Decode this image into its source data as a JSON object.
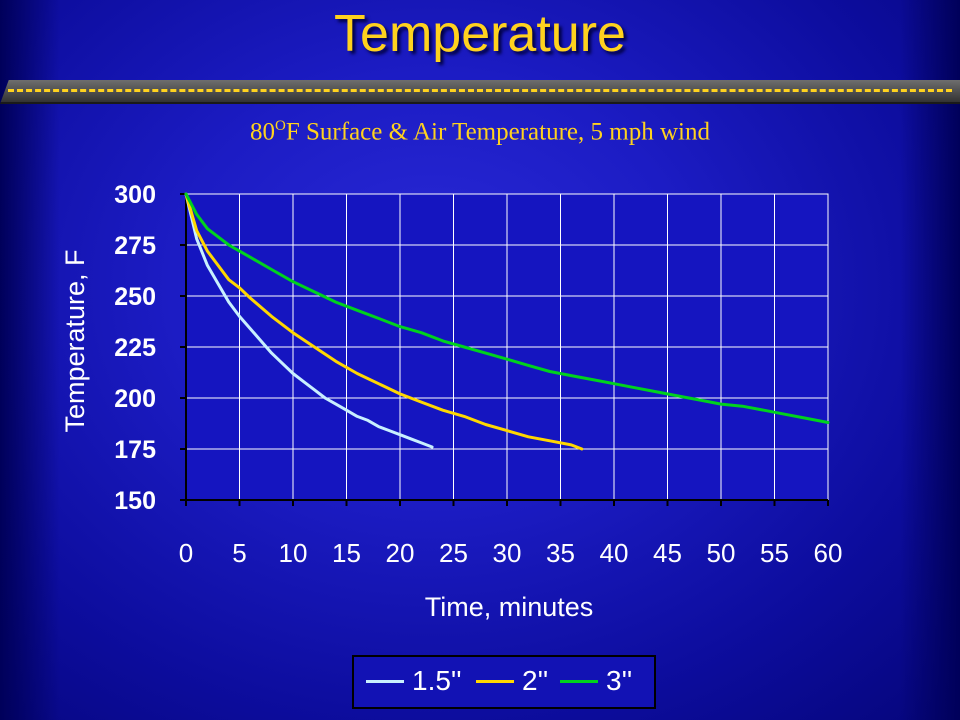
{
  "slide": {
    "title": "Temperature",
    "subtitle_main": "80",
    "subtitle_sup": "O",
    "subtitle_rest": "F Surface & Air Temperature, 5 mph wind"
  },
  "chart_data": {
    "type": "line",
    "xlabel": "Time, minutes",
    "ylabel": "Temperature, F",
    "xlim": [
      0,
      60
    ],
    "ylim": [
      150,
      300
    ],
    "xticks": [
      0,
      5,
      10,
      15,
      20,
      25,
      30,
      35,
      40,
      45,
      50,
      55,
      60
    ],
    "yticks": [
      150,
      175,
      200,
      225,
      250,
      275,
      300
    ],
    "grid": true,
    "legend_position": "bottom",
    "series": [
      {
        "name": "1.5''",
        "color": "#c8f0ff",
        "x": [
          0,
          1,
          2,
          3,
          4,
          5,
          6,
          7,
          8,
          9,
          10,
          11,
          12,
          13,
          14,
          15,
          16,
          17,
          18,
          19,
          20,
          21,
          22,
          23
        ],
        "y": [
          300,
          278,
          265,
          256,
          247,
          240,
          234,
          228,
          222,
          217,
          212,
          208,
          204,
          200,
          197,
          194,
          191,
          189,
          186,
          184,
          182,
          180,
          178,
          176
        ]
      },
      {
        "name": "2''",
        "color": "#ffd700",
        "x": [
          0,
          1,
          2,
          3,
          4,
          5,
          6,
          8,
          10,
          12,
          14,
          16,
          18,
          20,
          22,
          24,
          26,
          28,
          30,
          32,
          34,
          36,
          37
        ],
        "y": [
          300,
          282,
          272,
          265,
          258,
          254,
          249,
          240,
          232,
          225,
          218,
          212,
          207,
          202,
          198,
          194,
          191,
          187,
          184,
          181,
          179,
          177,
          175
        ]
      },
      {
        "name": "3''",
        "color": "#00d21e",
        "x": [
          0,
          1,
          2,
          3,
          4,
          5,
          6,
          8,
          10,
          12,
          14,
          16,
          18,
          20,
          22,
          24,
          26,
          28,
          30,
          32,
          34,
          36,
          38,
          40,
          42,
          44,
          46,
          48,
          50,
          52,
          54,
          56,
          58,
          60
        ],
        "y": [
          300,
          290,
          283,
          279,
          275,
          272,
          269,
          263,
          257,
          252,
          247,
          243,
          239,
          235,
          232,
          228,
          225,
          222,
          219,
          216,
          213,
          211,
          209,
          207,
          205,
          203,
          201,
          199,
          197,
          196,
          194,
          192,
          190,
          188
        ]
      }
    ]
  },
  "legend": {
    "items": [
      "1.5''",
      "2''",
      "3''"
    ]
  }
}
